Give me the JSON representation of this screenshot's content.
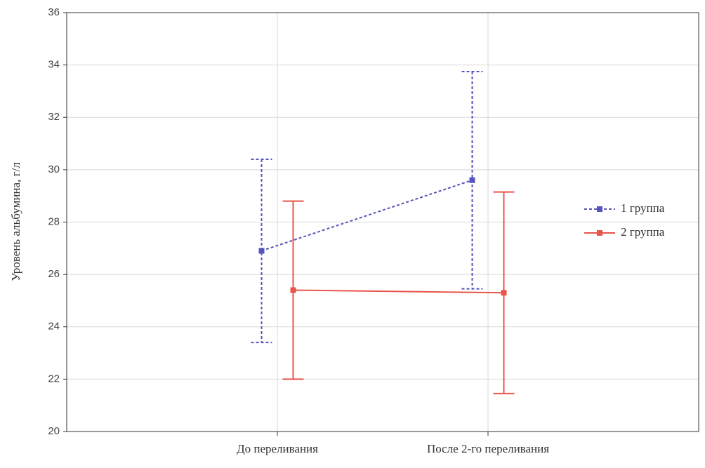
{
  "chart_data": {
    "type": "line",
    "y_label": "Уровень альбумина, г/л",
    "categories": [
      "До переливания",
      "После 2-го переливания"
    ],
    "series": [
      {
        "name": "1 группа",
        "color": "#5555bb",
        "dashed": true,
        "values": [
          26.9,
          29.6
        ],
        "errors": [
          3.5,
          4.15
        ]
      },
      {
        "name": "2 группа",
        "color": "#e8554a",
        "dashed": false,
        "values": [
          25.4,
          25.3
        ],
        "errors": [
          3.4,
          3.85
        ]
      }
    ],
    "ylim": [
      20,
      36
    ],
    "yticks": [
      20,
      22,
      24,
      26,
      28,
      30,
      32,
      34,
      36
    ],
    "grid": true,
    "legend": "right"
  }
}
